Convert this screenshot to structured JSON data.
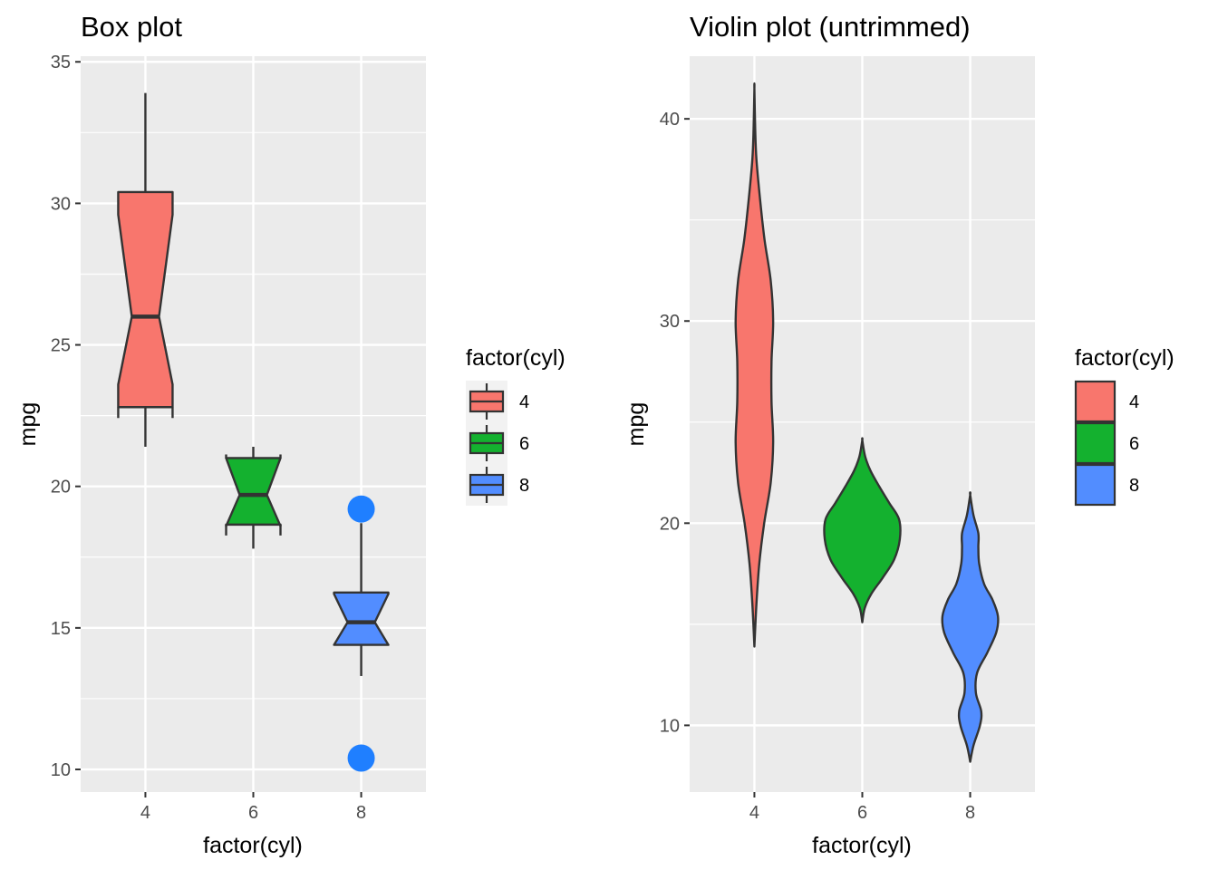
{
  "chart_data": [
    {
      "type": "box",
      "title": "Box plot",
      "xlabel": "factor(cyl)",
      "ylabel": "mpg",
      "categories": [
        "4",
        "6",
        "8"
      ],
      "yticks": [
        "10",
        "15",
        "20",
        "25",
        "30",
        "35"
      ],
      "ylim": [
        9.2,
        35.2
      ],
      "notched": true,
      "boxes": [
        {
          "category": "4",
          "whisker_low": 21.4,
          "q1": 22.8,
          "notch_low": 23.6,
          "median": 26.0,
          "notch_high": 29.6,
          "q3": 30.4,
          "whisker_high": 33.9,
          "outliers": []
        },
        {
          "category": "6",
          "whisker_low": 17.8,
          "q1": 18.65,
          "notch_low": 18.6,
          "median": 19.7,
          "notch_high": 21.0,
          "q3": 21.0,
          "whisker_high": 21.4,
          "outliers": []
        },
        {
          "category": "8",
          "whisker_low": 13.3,
          "q1": 14.4,
          "notch_low": 14.4,
          "median": 15.2,
          "notch_high": 16.2,
          "q3": 16.25,
          "whisker_high": 18.7,
          "outliers": [
            10.4,
            19.2
          ]
        }
      ],
      "outlier_color": "#1f7fff",
      "legend": {
        "title": "factor(cyl)",
        "placement": "right",
        "labels": [
          "4",
          "6",
          "8"
        ]
      },
      "colors": [
        "#f8766d",
        "#14b12f",
        "#528dff"
      ]
    },
    {
      "type": "violin",
      "title": "Violin plot (untrimmed)",
      "xlabel": "factor(cyl)",
      "ylabel": "mpg",
      "categories": [
        "4",
        "6",
        "8"
      ],
      "yticks": [
        "10",
        "20",
        "30",
        "40"
      ],
      "ylim": [
        6.7,
        43.1
      ],
      "trimmed": false,
      "violins": [
        {
          "category": "4",
          "profile": [
            [
              13.9,
              0.0
            ],
            [
              16,
              0.05
            ],
            [
              18,
              0.12
            ],
            [
              20,
              0.24
            ],
            [
              22,
              0.4
            ],
            [
              24,
              0.46
            ],
            [
              26,
              0.42
            ],
            [
              28,
              0.42
            ],
            [
              30,
              0.46
            ],
            [
              32,
              0.4
            ],
            [
              34,
              0.25
            ],
            [
              36,
              0.14
            ],
            [
              38,
              0.05
            ],
            [
              39.5,
              0.02
            ],
            [
              41.5,
              0.0
            ]
          ]
        },
        {
          "category": "6",
          "profile": [
            [
              15.1,
              0.0
            ],
            [
              15.8,
              0.06
            ],
            [
              16.5,
              0.22
            ],
            [
              17.3,
              0.5
            ],
            [
              18.2,
              0.78
            ],
            [
              19.2,
              0.92
            ],
            [
              20.2,
              0.9
            ],
            [
              21.0,
              0.66
            ],
            [
              21.8,
              0.42
            ],
            [
              22.6,
              0.2
            ],
            [
              23.3,
              0.07
            ],
            [
              24.1,
              0.0
            ]
          ]
        },
        {
          "category": "8",
          "profile": [
            [
              8.2,
              0.0
            ],
            [
              9.0,
              0.08
            ],
            [
              10.0,
              0.24
            ],
            [
              10.7,
              0.27
            ],
            [
              11.6,
              0.14
            ],
            [
              12.6,
              0.17
            ],
            [
              13.6,
              0.42
            ],
            [
              14.6,
              0.64
            ],
            [
              15.4,
              0.68
            ],
            [
              16.2,
              0.55
            ],
            [
              17.0,
              0.34
            ],
            [
              18.0,
              0.22
            ],
            [
              18.8,
              0.2
            ],
            [
              19.5,
              0.2
            ],
            [
              20.4,
              0.08
            ],
            [
              21.4,
              0.0
            ]
          ]
        }
      ],
      "legend": {
        "title": "factor(cyl)",
        "placement": "right",
        "labels": [
          "4",
          "6",
          "8"
        ]
      },
      "colors": [
        "#f8766d",
        "#14b12f",
        "#528dff"
      ]
    }
  ]
}
